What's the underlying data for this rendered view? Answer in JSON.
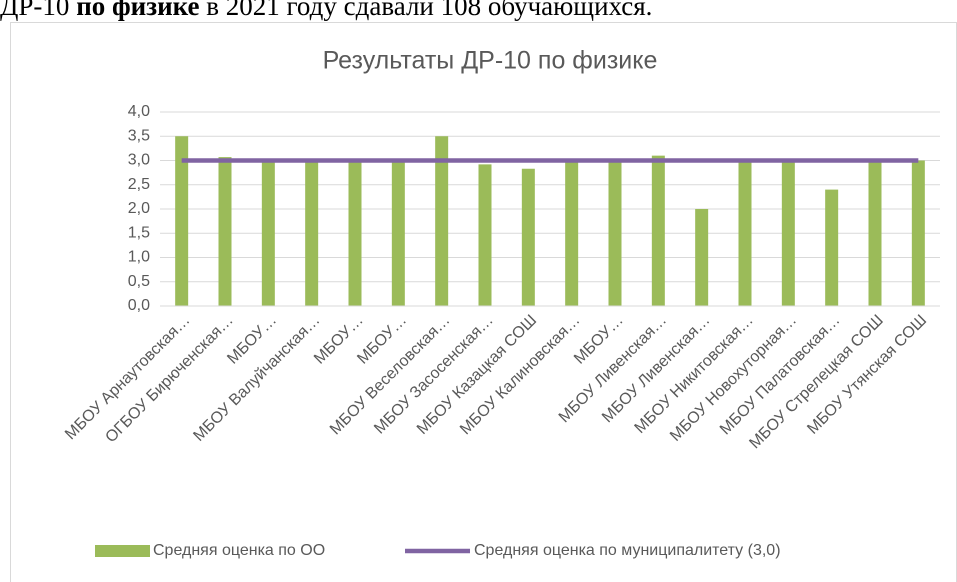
{
  "intro": {
    "parts": [
      "ДР-10 ",
      "по физике",
      " в 2021 году сдавали 108 обучающихся."
    ]
  },
  "chart_data": {
    "type": "bar",
    "title": "Результаты ДР-10 по физике",
    "categories": [
      "МБОУ Арнаутовская…",
      "ОГБОУ Бирюченская…",
      "МБОУ…",
      "МБОУ Валуйчанская…",
      "МБОУ…",
      "МБОУ…",
      "МБОУ Веселовская…",
      "МБОУ Засосенская…",
      "МБОУ Казацкая СОШ",
      "МБОУ Калиновская…",
      "МБОУ…",
      "МБОУ Ливенская…",
      "МБОУ Ливенская…",
      "МБОУ Никитовская…",
      "МБОУ Новохуторная…",
      "МБОУ Палатовская…",
      "МБОУ Стрелецкая СОШ",
      "МБОУ Утянская СОШ"
    ],
    "series": [
      {
        "name": "Средняя оценка по ОО",
        "type": "bar",
        "color": "#9bbb59",
        "values": [
          3.5,
          3.07,
          3.0,
          3.0,
          3.0,
          3.0,
          3.5,
          2.92,
          2.83,
          3.0,
          3.0,
          3.1,
          2.0,
          3.0,
          3.0,
          2.4,
          3.0,
          3.0
        ]
      },
      {
        "name": "Средняя оценка по муниципалитету (3,0)",
        "type": "line",
        "color": "#8064a2",
        "values": [
          3.0,
          3.0,
          3.0,
          3.0,
          3.0,
          3.0,
          3.0,
          3.0,
          3.0,
          3.0,
          3.0,
          3.0,
          3.0,
          3.0,
          3.0,
          3.0,
          3.0,
          3.0
        ]
      }
    ],
    "ylim": [
      0,
      4
    ],
    "yticks": [
      {
        "value": 0,
        "label": "0,0"
      },
      {
        "value": 0.5,
        "label": "0,5"
      },
      {
        "value": 1,
        "label": "1,0"
      },
      {
        "value": 1.5,
        "label": "1,5"
      },
      {
        "value": 2,
        "label": "2,0"
      },
      {
        "value": 2.5,
        "label": "2,5"
      },
      {
        "value": 3,
        "label": "3,0"
      },
      {
        "value": 3.5,
        "label": "3,5"
      },
      {
        "value": 4,
        "label": "4,0"
      }
    ],
    "grid": true,
    "legend": "bottom"
  }
}
